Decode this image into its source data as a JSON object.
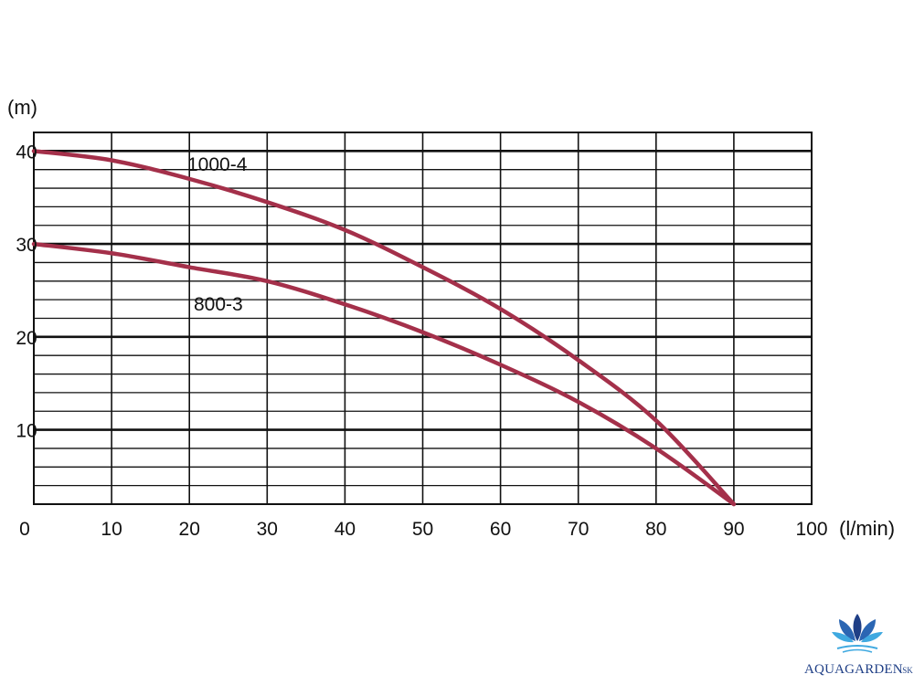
{
  "chart_data": {
    "type": "line",
    "title": "",
    "xlabel": "(l/min)",
    "ylabel": "(m)",
    "xlim": [
      0,
      100
    ],
    "ylim": [
      2,
      42
    ],
    "x_ticks": [
      0,
      10,
      20,
      30,
      40,
      50,
      60,
      70,
      80,
      90,
      100
    ],
    "y_ticks": [
      10,
      20,
      30,
      40
    ],
    "grid": true,
    "legend": "inline labels",
    "series": [
      {
        "name": "1000-4",
        "x": [
          0,
          10,
          20,
          30,
          40,
          50,
          60,
          70,
          80,
          90
        ],
        "y": [
          40,
          39,
          37,
          34.5,
          31.5,
          27.5,
          23,
          17.5,
          11,
          2
        ]
      },
      {
        "name": "800-3",
        "x": [
          0,
          10,
          20,
          30,
          40,
          50,
          60,
          70,
          80,
          90
        ],
        "y": [
          30,
          29,
          27.5,
          26,
          23.5,
          20.5,
          17,
          13,
          8,
          2
        ]
      }
    ]
  },
  "logo": {
    "text": "AQUAGARDEN",
    "suffix": ".SK",
    "colors": {
      "dark": "#1f3f86",
      "light": "#3fa9e0"
    }
  },
  "colors": {
    "curve": "#a4304a",
    "grid": "#111111"
  }
}
